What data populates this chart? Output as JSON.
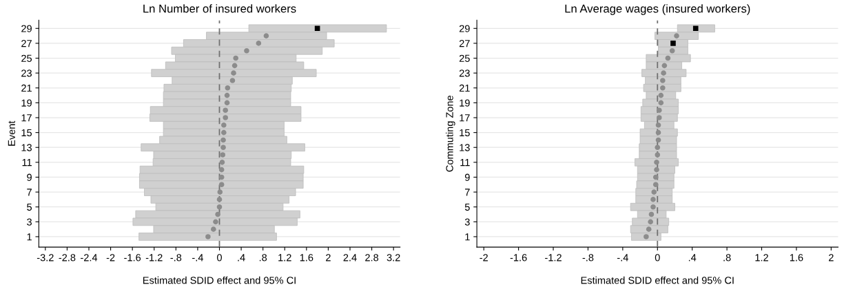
{
  "chart_data": [
    {
      "type": "bar",
      "orientation": "horizontal",
      "title": "Ln Number of insured workers",
      "xlabel": "Estimated SDID effect and 95% CI",
      "ylabel": "Event",
      "categories": [
        "29",
        null,
        "27",
        null,
        "25",
        null,
        "23",
        null,
        "21",
        null,
        "19",
        null,
        "17",
        null,
        "15",
        null,
        "13",
        null,
        "11",
        null,
        "9",
        null,
        "7",
        null,
        "5",
        null,
        "3",
        null,
        "1"
      ],
      "series": [
        {
          "type": "bar",
          "color": "#d0d0d0",
          "base": [
            0.54,
            -0.24,
            -0.66,
            -0.88,
            -0.81,
            -0.99,
            -1.25,
            -0.87,
            -1.02,
            -1.03,
            -1.03,
            -1.27,
            -1.28,
            -1.03,
            -1.03,
            -1.1,
            -1.44,
            -1.21,
            -1.22,
            -1.46,
            -1.47,
            -1.47,
            -1.38,
            -1.26,
            -1.17,
            -1.54,
            -1.59,
            -1.21,
            -1.48
          ],
          "values": [
            2.53,
            2.21,
            2.77,
            2.77,
            2.22,
            2.54,
            3.03,
            2.21,
            2.34,
            2.34,
            2.34,
            2.77,
            2.78,
            2.22,
            2.22,
            2.34,
            3.01,
            2.53,
            2.53,
            3.01,
            3.01,
            3.01,
            2.78,
            2.54,
            2.34,
            3.02,
            3.02,
            2.22,
            2.53
          ]
        },
        {
          "type": "scatter",
          "color": "#8c8c8c",
          "marker": "circle",
          "values": [
            null,
            0.86,
            0.72,
            0.5,
            0.3,
            0.28,
            0.26,
            0.24,
            0.15,
            0.14,
            0.14,
            0.11,
            0.11,
            0.08,
            0.08,
            0.07,
            0.07,
            0.06,
            0.05,
            0.04,
            0.04,
            0.04,
            0.01,
            0.0,
            0.0,
            -0.03,
            -0.07,
            -0.11,
            -0.21
          ]
        },
        {
          "type": "scatter",
          "color": "#000000",
          "marker": "square",
          "values": [
            1.8,
            null,
            null,
            null,
            null,
            null,
            null,
            null,
            null,
            null,
            null,
            null,
            null,
            null,
            null,
            null,
            null,
            null,
            null,
            null,
            null,
            null,
            null,
            null,
            null,
            null,
            null,
            null,
            null
          ]
        }
      ],
      "xlim": [
        -3.32,
        3.32
      ],
      "xticks": [
        {
          "value": -3.2,
          "label": "-3.2"
        },
        {
          "value": -2.8,
          "label": "-2.8"
        },
        {
          "value": -2.4,
          "label": "-2.4"
        },
        -2,
        {
          "value": -1.6,
          "label": "-1.6"
        },
        {
          "value": -1.2,
          "label": "-1.2"
        },
        {
          "value": -0.8,
          "label": "-.8"
        },
        {
          "value": -0.4,
          "label": "-.4"
        },
        0,
        {
          "value": 0.4,
          "label": ".4"
        },
        {
          "value": 0.8,
          "label": ".8"
        },
        1.2,
        1.6,
        2,
        2.4,
        2.8,
        3.2
      ],
      "ref_lines": [
        {
          "axis": "x",
          "value": 0,
          "color": "#707070",
          "line_style": "dashed"
        }
      ],
      "grid": "y",
      "legend": false
    },
    {
      "type": "bar",
      "orientation": "horizontal",
      "title": "Ln Average wages (insured workers)",
      "xlabel": "Estimated SDID effect and 95% CI",
      "ylabel": "Commuting Zone",
      "categories": [
        "29",
        null,
        "27",
        null,
        "25",
        null,
        "23",
        null,
        "21",
        null,
        "19",
        null,
        "17",
        null,
        "15",
        null,
        "13",
        null,
        "11",
        null,
        "9",
        null,
        "7",
        null,
        "5",
        null,
        "3",
        null,
        "1"
      ],
      "series": [
        {
          "type": "bar",
          "color": "#d0d0d0",
          "base": [
            0.23,
            -0.03,
            0.01,
            0.01,
            -0.13,
            -0.13,
            -0.18,
            -0.14,
            -0.16,
            -0.13,
            -0.17,
            -0.19,
            -0.19,
            -0.15,
            -0.2,
            -0.2,
            -0.21,
            -0.21,
            -0.26,
            -0.23,
            -0.23,
            -0.24,
            -0.25,
            -0.25,
            -0.31,
            -0.23,
            -0.29,
            -0.31,
            -0.3
          ],
          "values": [
            0.43,
            0.5,
            0.34,
            0.34,
            0.51,
            0.41,
            0.51,
            0.41,
            0.43,
            0.34,
            0.41,
            0.43,
            0.42,
            0.34,
            0.43,
            0.42,
            0.43,
            0.43,
            0.5,
            0.43,
            0.42,
            0.43,
            0.42,
            0.42,
            0.51,
            0.33,
            0.42,
            0.43,
            0.34
          ]
        },
        {
          "type": "scatter",
          "color": "#8c8c8c",
          "marker": "circle",
          "values": [
            null,
            0.22,
            null,
            0.17,
            0.12,
            0.08,
            0.07,
            0.06,
            0.06,
            0.04,
            0.04,
            0.02,
            0.02,
            0.01,
            0.01,
            0.01,
            0.0,
            0.0,
            -0.01,
            -0.01,
            -0.02,
            -0.02,
            -0.04,
            -0.05,
            -0.05,
            -0.07,
            -0.08,
            -0.1,
            -0.13
          ]
        },
        {
          "type": "scatter",
          "color": "#000000",
          "marker": "square",
          "values": [
            0.44,
            null,
            0.18,
            null,
            null,
            null,
            null,
            null,
            null,
            null,
            null,
            null,
            null,
            null,
            null,
            null,
            null,
            null,
            null,
            null,
            null,
            null,
            null,
            null,
            null,
            null,
            null,
            null,
            null
          ]
        }
      ],
      "xlim": [
        -2.08,
        2.08
      ],
      "xticks": [
        -2,
        {
          "value": -1.6,
          "label": "-1.6"
        },
        {
          "value": -1.2,
          "label": "-1.2"
        },
        {
          "value": -0.8,
          "label": "-.8"
        },
        {
          "value": -0.4,
          "label": "-.4"
        },
        0,
        {
          "value": 0.4,
          "label": ".4"
        },
        {
          "value": 0.8,
          "label": ".8"
        },
        1.2,
        1.6,
        2
      ],
      "ref_lines": [
        {
          "axis": "x",
          "value": 0,
          "color": "#707070",
          "line_style": "dashed"
        }
      ],
      "grid": "y",
      "legend": false
    }
  ]
}
